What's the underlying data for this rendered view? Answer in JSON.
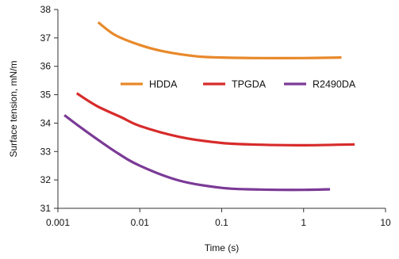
{
  "chart_data": {
    "type": "line",
    "title": "",
    "xlabel": "Time (s)",
    "ylabel": "Surface tension, mN/m",
    "xscale": "log",
    "xlim": [
      0.001,
      10
    ],
    "ylim": [
      31,
      38
    ],
    "xticks": [
      0.001,
      0.01,
      0.1,
      1,
      10
    ],
    "xtick_labels": [
      "0.001",
      "0.01",
      "0.1",
      "1",
      "10"
    ],
    "yticks": [
      31,
      32,
      33,
      34,
      35,
      36,
      37,
      38
    ],
    "ytick_labels": [
      "31",
      "32",
      "33",
      "34",
      "35",
      "36",
      "37",
      "38"
    ],
    "grid": false,
    "legend_position": "middle-right",
    "series": [
      {
        "name": "HDDA",
        "color": "#E8892B",
        "points": [
          [
            0.0031,
            37.55
          ],
          [
            0.005,
            37.1
          ],
          [
            0.01,
            36.75
          ],
          [
            0.02,
            36.52
          ],
          [
            0.05,
            36.35
          ],
          [
            0.1,
            36.31
          ],
          [
            0.3,
            36.29
          ],
          [
            1,
            36.29
          ],
          [
            2.9,
            36.31
          ]
        ]
      },
      {
        "name": "TPGDA",
        "color": "#D72B2B",
        "points": [
          [
            0.0017,
            35.05
          ],
          [
            0.003,
            34.6
          ],
          [
            0.006,
            34.2
          ],
          [
            0.01,
            33.9
          ],
          [
            0.03,
            33.52
          ],
          [
            0.1,
            33.3
          ],
          [
            0.3,
            33.24
          ],
          [
            1,
            33.22
          ],
          [
            4.2,
            33.25
          ]
        ]
      },
      {
        "name": "R2490DA",
        "color": "#7B3A96",
        "points": [
          [
            0.0012,
            34.28
          ],
          [
            0.002,
            33.8
          ],
          [
            0.005,
            33.0
          ],
          [
            0.01,
            32.5
          ],
          [
            0.03,
            31.98
          ],
          [
            0.1,
            31.72
          ],
          [
            0.3,
            31.66
          ],
          [
            1,
            31.65
          ],
          [
            2.1,
            31.67
          ]
        ]
      }
    ]
  }
}
